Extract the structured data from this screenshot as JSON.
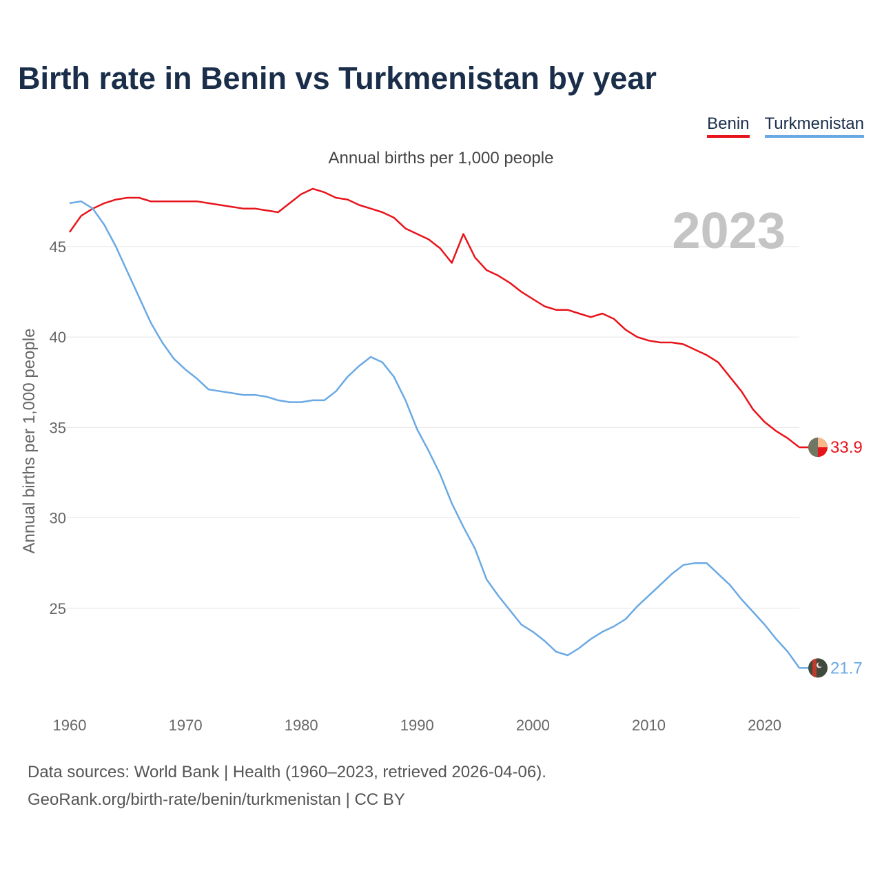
{
  "title": "Birth rate in Benin vs Turkmenistan by year",
  "subtitle": "Annual births per 1,000 people",
  "footer": {
    "source": "Data sources: World Bank | Health (1960–2023, retrieved 2026-04-06).",
    "credit": "GeoRank.org/birth-rate/benin/turkmenistan | CC BY"
  },
  "chart_data": {
    "type": "line",
    "title": "Birth rate in Benin vs Turkmenistan by year",
    "subtitle": "Annual births per 1,000 people",
    "xlabel": "",
    "ylabel": "Annual births per 1,000 people",
    "year_watermark": "2023",
    "xlim": [
      1960,
      2023
    ],
    "ylim": [
      20,
      48.5
    ],
    "x_ticks": [
      1960,
      1970,
      1980,
      1990,
      2000,
      2010,
      2020
    ],
    "y_ticks": [
      25,
      30,
      35,
      40,
      45
    ],
    "grid": true,
    "legend_position": "top-right",
    "x": [
      1960,
      1961,
      1962,
      1963,
      1964,
      1965,
      1966,
      1967,
      1968,
      1969,
      1970,
      1971,
      1972,
      1973,
      1974,
      1975,
      1976,
      1977,
      1978,
      1979,
      1980,
      1981,
      1982,
      1983,
      1984,
      1985,
      1986,
      1987,
      1988,
      1989,
      1990,
      1991,
      1992,
      1993,
      1994,
      1995,
      1996,
      1997,
      1998,
      1999,
      2000,
      2001,
      2002,
      2003,
      2004,
      2005,
      2006,
      2007,
      2008,
      2009,
      2010,
      2011,
      2012,
      2013,
      2014,
      2015,
      2016,
      2017,
      2018,
      2019,
      2020,
      2021,
      2022,
      2023
    ],
    "series": [
      {
        "name": "Benin",
        "color": "#e8141b",
        "end_label": "33.9",
        "values": [
          45.8,
          46.7,
          47.1,
          47.4,
          47.6,
          47.7,
          47.7,
          47.5,
          47.5,
          47.5,
          47.5,
          47.5,
          47.4,
          47.3,
          47.2,
          47.1,
          47.1,
          47.0,
          46.9,
          47.4,
          47.9,
          48.2,
          48.0,
          47.7,
          47.6,
          47.3,
          47.1,
          46.9,
          46.6,
          46.0,
          45.7,
          45.4,
          44.9,
          44.1,
          45.7,
          44.4,
          43.7,
          43.4,
          43.0,
          42.5,
          42.1,
          41.7,
          41.5,
          41.5,
          41.3,
          41.1,
          41.3,
          41.0,
          40.4,
          40.0,
          39.8,
          39.7,
          39.7,
          39.6,
          39.3,
          39.0,
          38.6,
          37.8,
          37.0,
          36.0,
          35.3,
          34.8,
          34.4,
          33.9
        ]
      },
      {
        "name": "Turkmenistan",
        "color": "#6aa9e4",
        "end_label": "21.7",
        "values": [
          47.4,
          47.5,
          47.1,
          46.2,
          45.0,
          43.6,
          42.2,
          40.8,
          39.7,
          38.8,
          38.2,
          37.7,
          37.1,
          37.0,
          36.9,
          36.8,
          36.8,
          36.7,
          36.5,
          36.4,
          36.4,
          36.5,
          36.5,
          37.0,
          37.8,
          38.4,
          38.9,
          38.6,
          37.8,
          36.5,
          34.9,
          33.7,
          32.4,
          30.8,
          29.5,
          28.3,
          26.6,
          25.7,
          24.9,
          24.1,
          23.7,
          23.2,
          22.6,
          22.4,
          22.8,
          23.3,
          23.7,
          24.0,
          24.4,
          25.1,
          25.7,
          26.3,
          26.9,
          27.4,
          27.5,
          27.5,
          26.9,
          26.3,
          25.5,
          24.8,
          24.1,
          23.3,
          22.6,
          21.7
        ]
      }
    ]
  }
}
